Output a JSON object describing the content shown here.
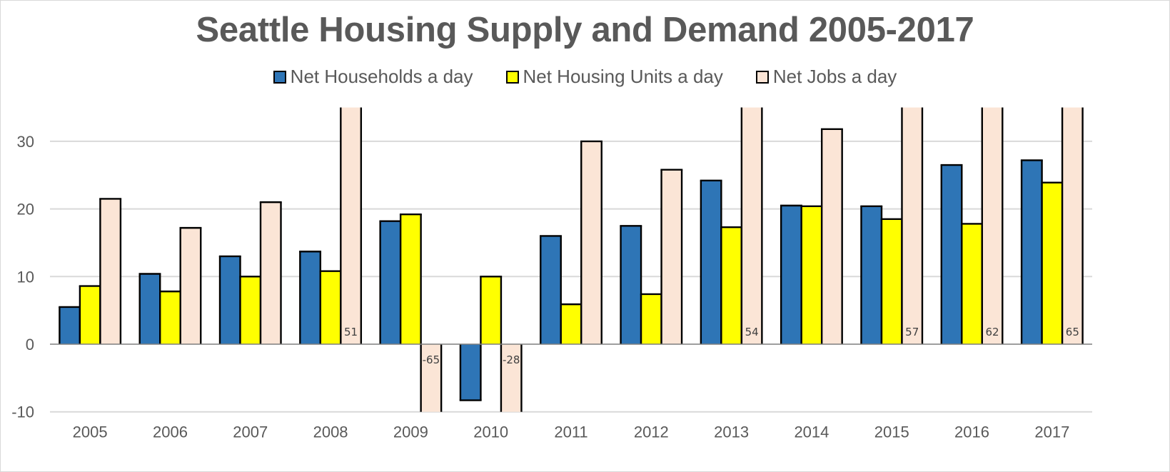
{
  "chart_data": {
    "type": "bar",
    "title": "Seattle Housing Supply and Demand 2005-2017",
    "xlabel": "",
    "ylabel": "",
    "categories": [
      "2005",
      "2006",
      "2007",
      "2008",
      "2009",
      "2010",
      "2011",
      "2012",
      "2013",
      "2014",
      "2015",
      "2016",
      "2017"
    ],
    "ylim": [
      -10,
      35
    ],
    "yticks": [
      -10,
      0,
      10,
      20,
      30
    ],
    "grid": true,
    "legend_position": "top",
    "series": [
      {
        "name": "Net Households a day",
        "color": "#2e75b6",
        "values": [
          5.5,
          10.4,
          13.0,
          13.7,
          18.2,
          -8.3,
          16.0,
          17.5,
          24.2,
          20.5,
          20.4,
          26.5,
          27.2
        ]
      },
      {
        "name": "Net Housing Units a day",
        "color": "#ffff00",
        "values": [
          8.6,
          7.8,
          10.0,
          10.8,
          19.2,
          10.0,
          5.9,
          7.4,
          17.3,
          20.4,
          18.5,
          17.8,
          23.9
        ]
      },
      {
        "name": "Net Jobs a day",
        "color": "#fbe5d6",
        "values": [
          21.5,
          17.2,
          21.0,
          51,
          -65,
          -28,
          30.0,
          25.8,
          54,
          31.8,
          57,
          62,
          65
        ]
      }
    ],
    "annotations": [
      {
        "category": "2008",
        "series": "Net Jobs a day",
        "text": "51"
      },
      {
        "category": "2009",
        "series": "Net Jobs a day",
        "text": "-65"
      },
      {
        "category": "2010",
        "series": "Net Jobs a day",
        "text": "-28"
      },
      {
        "category": "2013",
        "series": "Net Jobs a day",
        "text": "54"
      },
      {
        "category": "2015",
        "series": "Net Jobs a day",
        "text": "57"
      },
      {
        "category": "2016",
        "series": "Net Jobs a day",
        "text": "62"
      },
      {
        "category": "2017",
        "series": "Net Jobs a day",
        "text": "65"
      }
    ]
  }
}
